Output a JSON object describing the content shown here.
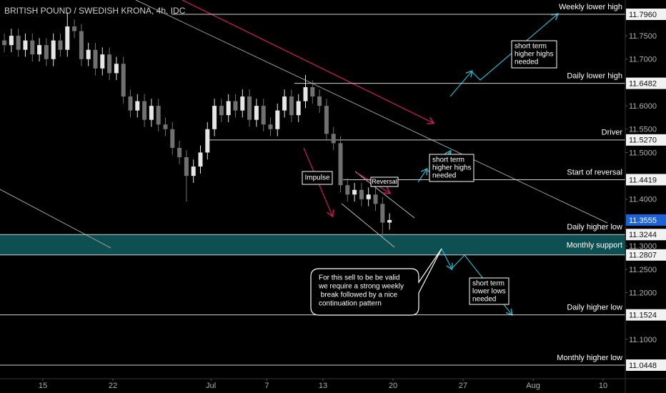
{
  "chart_data": {
    "type": "candlestick",
    "title": "BRITISH POUND / SWEDISH KRONA, 4h, IDC",
    "x": [
      -2.75,
      -2.25,
      -1.75,
      -1.25,
      -0.75,
      -0.25,
      0.25,
      0.75,
      1.25,
      1.75,
      2.25,
      2.75,
      3.25,
      3.75,
      4.25,
      4.75,
      5.25,
      5.75,
      6.25,
      6.75,
      7.25,
      7.75,
      8.25,
      8.75,
      9.25,
      9.75,
      10.25,
      10.75,
      11.25,
      11.75,
      12.25,
      12.75,
      13.25,
      13.75,
      14.25,
      14.75,
      15.25,
      15.75,
      16.25,
      16.75,
      17.25,
      17.75,
      18.25,
      18.75,
      19.25,
      19.75,
      20.25,
      20.75,
      21.25,
      21.75,
      22.25,
      22.75,
      23.25,
      23.75,
      24.25,
      24.75
    ],
    "open": [
      11.74,
      11.73,
      11.75,
      11.72,
      11.74,
      11.71,
      11.73,
      11.7,
      11.74,
      11.72,
      11.77,
      11.76,
      11.7,
      11.72,
      11.68,
      11.71,
      11.67,
      11.69,
      11.62,
      11.59,
      11.61,
      11.57,
      11.6,
      11.56,
      11.55,
      11.51,
      11.49,
      11.45,
      11.47,
      11.5,
      11.55,
      11.6,
      11.58,
      11.61,
      11.59,
      11.62,
      11.57,
      11.6,
      11.56,
      11.55,
      11.59,
      11.62,
      11.58,
      11.61,
      11.64,
      11.62,
      11.6,
      11.54,
      11.52,
      11.43,
      11.41,
      11.42,
      11.4,
      11.41,
      11.39,
      11.35
    ],
    "high": [
      11.755,
      11.765,
      11.765,
      11.755,
      11.755,
      11.745,
      11.745,
      11.755,
      11.755,
      11.8,
      11.785,
      11.775,
      11.735,
      11.735,
      11.725,
      11.725,
      11.705,
      11.705,
      11.635,
      11.625,
      11.625,
      11.615,
      11.615,
      11.575,
      11.565,
      11.525,
      11.505,
      11.485,
      11.515,
      11.565,
      11.615,
      11.615,
      11.625,
      11.625,
      11.635,
      11.635,
      11.615,
      11.615,
      11.575,
      11.605,
      11.635,
      11.635,
      11.625,
      11.666,
      11.655,
      11.635,
      11.615,
      11.555,
      11.535,
      11.445,
      11.435,
      11.435,
      11.425,
      11.425,
      11.405,
      11.37
    ],
    "low": [
      11.715,
      11.715,
      11.705,
      11.705,
      11.695,
      11.695,
      11.685,
      11.685,
      11.705,
      11.705,
      11.745,
      11.685,
      11.685,
      11.665,
      11.665,
      11.655,
      11.655,
      11.605,
      11.575,
      11.575,
      11.555,
      11.555,
      11.545,
      11.535,
      11.495,
      11.475,
      11.395,
      11.435,
      11.455,
      11.485,
      11.535,
      11.565,
      11.565,
      11.575,
      11.575,
      11.555,
      11.555,
      11.545,
      11.535,
      11.535,
      11.575,
      11.565,
      11.565,
      11.595,
      11.605,
      11.585,
      11.525,
      11.505,
      11.415,
      11.395,
      11.395,
      11.385,
      11.385,
      11.375,
      11.32,
      11.335
    ],
    "close": [
      11.73,
      11.75,
      11.72,
      11.74,
      11.71,
      11.73,
      11.7,
      11.74,
      11.72,
      11.77,
      11.76,
      11.7,
      11.72,
      11.68,
      11.71,
      11.67,
      11.69,
      11.62,
      11.59,
      11.61,
      11.57,
      11.6,
      11.56,
      11.55,
      11.51,
      11.49,
      11.45,
      11.47,
      11.5,
      11.55,
      11.6,
      11.58,
      11.61,
      11.59,
      11.62,
      11.57,
      11.6,
      11.56,
      11.55,
      11.59,
      11.62,
      11.58,
      11.61,
      11.64,
      11.62,
      11.6,
      11.54,
      11.52,
      11.43,
      11.41,
      11.42,
      11.4,
      11.41,
      11.39,
      11.35,
      11.3555
    ],
    "up_color": "#e6e6e6",
    "down_color": "#707070",
    "xlim": [
      -3.06,
      41.58
    ],
    "ylim": [
      11.0157,
      11.8266
    ],
    "xticks": [
      {
        "value": 0,
        "label": "15"
      },
      {
        "value": 5,
        "label": "22"
      },
      {
        "value": 12,
        "label": "Jul"
      },
      {
        "value": 16,
        "label": "7"
      },
      {
        "value": 20,
        "label": "13"
      },
      {
        "value": 25,
        "label": "20"
      },
      {
        "value": 30,
        "label": "27"
      },
      {
        "value": 35,
        "label": "Aug"
      },
      {
        "value": 40,
        "label": "10"
      }
    ],
    "yticks": [
      {
        "value": 11.75,
        "label": "11.7500"
      },
      {
        "value": 11.7,
        "label": "11.7000"
      },
      {
        "value": 11.6,
        "label": "11.6000"
      },
      {
        "value": 11.55,
        "label": "11.5500"
      },
      {
        "value": 11.5,
        "label": "11.5000"
      },
      {
        "value": 11.4,
        "label": "11.4000"
      },
      {
        "value": 11.3,
        "label": "11.3000"
      },
      {
        "value": 11.25,
        "label": "11.2500"
      },
      {
        "value": 11.2,
        "label": "11.2000"
      },
      {
        "value": 11.1,
        "label": "11.1000"
      }
    ],
    "grid": false,
    "levels": [
      {
        "value": 11.796,
        "tag": "11.7960",
        "label": "Weekly lower high"
      },
      {
        "value": 11.6482,
        "tag": "11.6482",
        "label": "Daily lower high"
      },
      {
        "value": 11.527,
        "tag": "11.5270",
        "label": "Driver"
      },
      {
        "value": 11.4419,
        "tag": "11.4419",
        "label": "Start of reversal"
      },
      {
        "value": 11.3244,
        "tag": "11.3244",
        "label": "Daily higher low"
      },
      {
        "value": 11.2807,
        "tag": "11.2807"
      },
      {
        "value": 11.1524,
        "tag": "11.1524",
        "label": "Daily higher low"
      },
      {
        "value": 11.0448,
        "tag": "11.0448",
        "label": "Monthly higher low"
      }
    ],
    "support_band": {
      "label": "Monthly support"
    },
    "current_price": {
      "value": 11.3555,
      "label": "11.3555"
    },
    "annotations": {
      "impulse": "Impulse",
      "reversal": "Reversal",
      "note_1": [
        "short term",
        "higher highs",
        "needed"
      ],
      "note_2": [
        "short term",
        "higher highs",
        "needed"
      ],
      "note_3": [
        "short term",
        "lower lows",
        "needed"
      ],
      "callout": [
        "For this sell to be be valid",
        "we require a strong weekly",
        " break followed by a nice",
        "continuation pattern"
      ]
    }
  }
}
